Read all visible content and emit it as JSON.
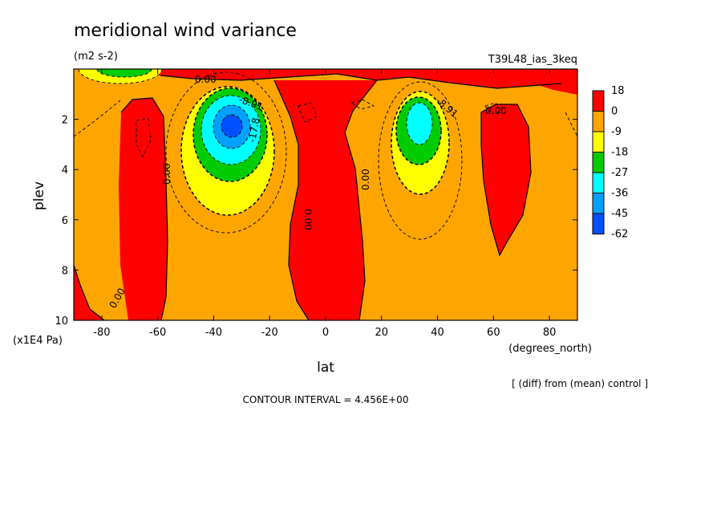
{
  "chart_data": {
    "type": "heatmap",
    "title": "meridional wind variance",
    "units": "(m2 s-2)",
    "run_label": "T39L48_ias_3keq",
    "xlabel": "lat",
    "x_units": "(degrees_north)",
    "ylabel": "plev",
    "y_units": "(x1E4 Pa)",
    "xlim": [
      -90,
      90
    ],
    "ylim": [
      10,
      0
    ],
    "x_ticks": [
      -80,
      -60,
      -40,
      -20,
      0,
      20,
      40,
      60,
      80
    ],
    "x_tick_labels": [
      "-80",
      "-60",
      "-40",
      "-20",
      "0",
      "20",
      "40",
      "60",
      "80"
    ],
    "y_ticks": [
      2,
      4,
      6,
      8,
      10
    ],
    "y_tick_labels": [
      "2",
      "4",
      "6",
      "8",
      "10"
    ],
    "colorbar": {
      "labels": [
        "18",
        "0",
        "-9",
        "-18",
        "-27",
        "-36",
        "-45",
        "-62"
      ],
      "colors": [
        "#ff0000",
        "#ffa500",
        "#ffff00",
        "#00cc00",
        "#00ffff",
        "#00a0ff",
        "#0050ff"
      ]
    },
    "contour_labels": [
      "0.00",
      "0.00",
      "0.00",
      "0.00",
      "0.00",
      "0.00",
      "-8.91",
      "-8.91",
      "-17.8"
    ],
    "notes": [
      "[ (diff) from (mean) control ]",
      "CONTOUR INTERVAL = 4.456E+00"
    ],
    "features": [
      {
        "name": "southern minimum",
        "lat": -33,
        "plev": 2.4,
        "value": -62
      },
      {
        "name": "northern minimum",
        "lat": 32,
        "plev": 2.3,
        "value": -36
      },
      {
        "name": "polar surface minimum",
        "lat": -75,
        "plev": 0.1,
        "value": -27
      }
    ],
    "grid": false,
    "legend": "right"
  }
}
